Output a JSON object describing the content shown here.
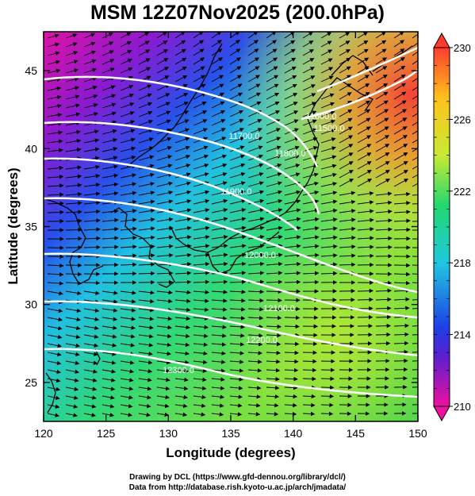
{
  "title": "MSM 12Z07Nov2025 (200.0hPa)",
  "map": {
    "x_axis": {
      "label": "Longitude (degrees)",
      "min": 120,
      "max": 150,
      "ticks": [
        "120",
        "125",
        "130",
        "135",
        "140",
        "145",
        "150"
      ]
    },
    "y_axis": {
      "label": "Latitude  (degrees)",
      "min": 22.5,
      "max": 47.5,
      "ticks": [
        "25",
        "30",
        "35",
        "40",
        "45"
      ]
    },
    "colorbar": {
      "min": 210,
      "max": 230,
      "ticks": [
        "210",
        "214",
        "218",
        "222",
        "226",
        "230"
      ],
      "stops": [
        "#ee10a0",
        "#5a1fcf",
        "#1f3fe6",
        "#20c8e0",
        "#22d870",
        "#c8ea32",
        "#ffc21c",
        "#ff3c2c"
      ]
    },
    "contours": [
      {
        "label": "11700.0"
      },
      {
        "label": "11800.0"
      },
      {
        "label": "11900.0"
      },
      {
        "label": "11500.0"
      },
      {
        "label": "11600.0"
      },
      {
        "label": "12000.0"
      },
      {
        "label": "12100.0"
      },
      {
        "label": "12200.0"
      },
      {
        "label": "12300.0"
      }
    ]
  },
  "credits": {
    "line1": "Drawing by DCL (https://www.gfd-dennou.org/library/dcl/)",
    "line2": "Data from http://database.rish.kyoto-u.ac.jp/arch/jmadata/"
  }
}
